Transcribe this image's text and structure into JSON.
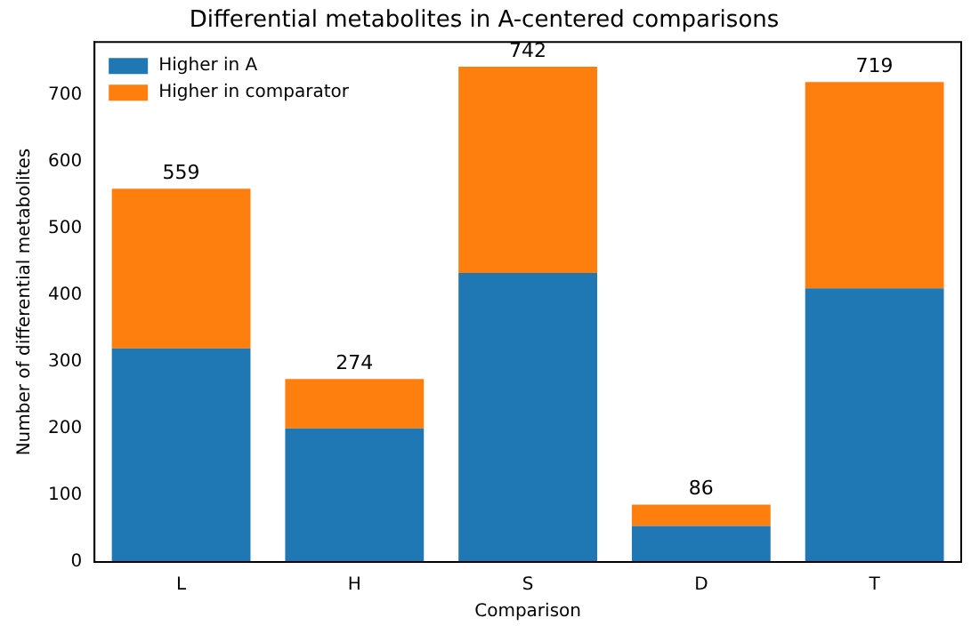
{
  "chart_data": {
    "type": "bar",
    "title": "Differential metabolites in A-centered comparisons",
    "xlabel": "Comparison",
    "ylabel": "Number of differential metabolites",
    "categories": [
      "L",
      "H",
      "S",
      "D",
      "T"
    ],
    "series": [
      {
        "name": "Higher in A",
        "color": "#1f77b4",
        "values": [
          320,
          200,
          433,
          54,
          410
        ]
      },
      {
        "name": "Higher in comparator",
        "color": "#ff7f0e",
        "values": [
          239,
          74,
          309,
          32,
          309
        ]
      }
    ],
    "stacked": true,
    "totals": [
      "559",
      "274",
      "742",
      "86",
      "719"
    ],
    "ylim": [
      0,
      779
    ],
    "yticks": [
      0,
      100,
      200,
      300,
      400,
      500,
      600,
      700
    ],
    "grid": false,
    "legend": "top left"
  }
}
